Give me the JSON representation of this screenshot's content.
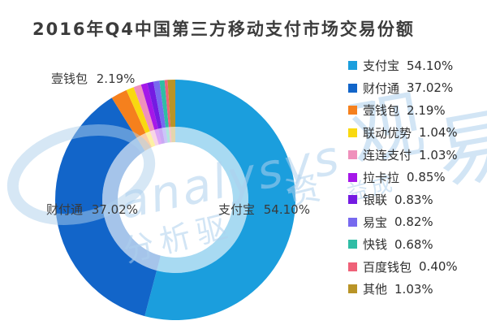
{
  "header": {
    "title": "2016年Q4中国第三方移动支付市场交易份额"
  },
  "chart_data": {
    "type": "pie",
    "subtype": "donut",
    "title": "2016年Q4中国第三方移动支付市场交易份额",
    "unit": "%",
    "total": 100,
    "legend_position": "right",
    "start_angle": "top",
    "direction": "clockwise",
    "series": [
      {
        "name": "支付宝",
        "value": 54.1,
        "pct_label": "54.10%",
        "color": "#1B9EDD"
      },
      {
        "name": "财付通",
        "value": 37.02,
        "pct_label": "37.02%",
        "color": "#1265C9"
      },
      {
        "name": "壹钱包",
        "value": 2.19,
        "pct_label": "2.19%",
        "color": "#F5801D"
      },
      {
        "name": "联动优势",
        "value": 1.04,
        "pct_label": "1.04%",
        "color": "#F9D910"
      },
      {
        "name": "连连支付",
        "value": 1.03,
        "pct_label": "1.03%",
        "color": "#EF90BC"
      },
      {
        "name": "拉卡拉",
        "value": 0.85,
        "pct_label": "0.85%",
        "color": "#A517E9"
      },
      {
        "name": "银联",
        "value": 0.83,
        "pct_label": "0.83%",
        "color": "#741BE2"
      },
      {
        "name": "易宝",
        "value": 0.82,
        "pct_label": "0.82%",
        "color": "#7769EF"
      },
      {
        "name": "快钱",
        "value": 0.68,
        "pct_label": "0.68%",
        "color": "#2FBDA5"
      },
      {
        "name": "百度钱包",
        "value": 0.4,
        "pct_label": "0.40%",
        "color": "#EF6178"
      },
      {
        "name": "其他",
        "value": 1.03,
        "pct_label": "1.03%",
        "color": "#B99427"
      }
    ],
    "callouts": [
      "壹钱包 2.19%",
      "财付通 37.02%",
      "支付宝 54.10%"
    ]
  },
  "watermark": {
    "script": "analysys",
    "char_guan": "观",
    "char_yi": "易",
    "slogan": "分析驱",
    "char_zi": "资",
    "chars_small": "益成"
  }
}
